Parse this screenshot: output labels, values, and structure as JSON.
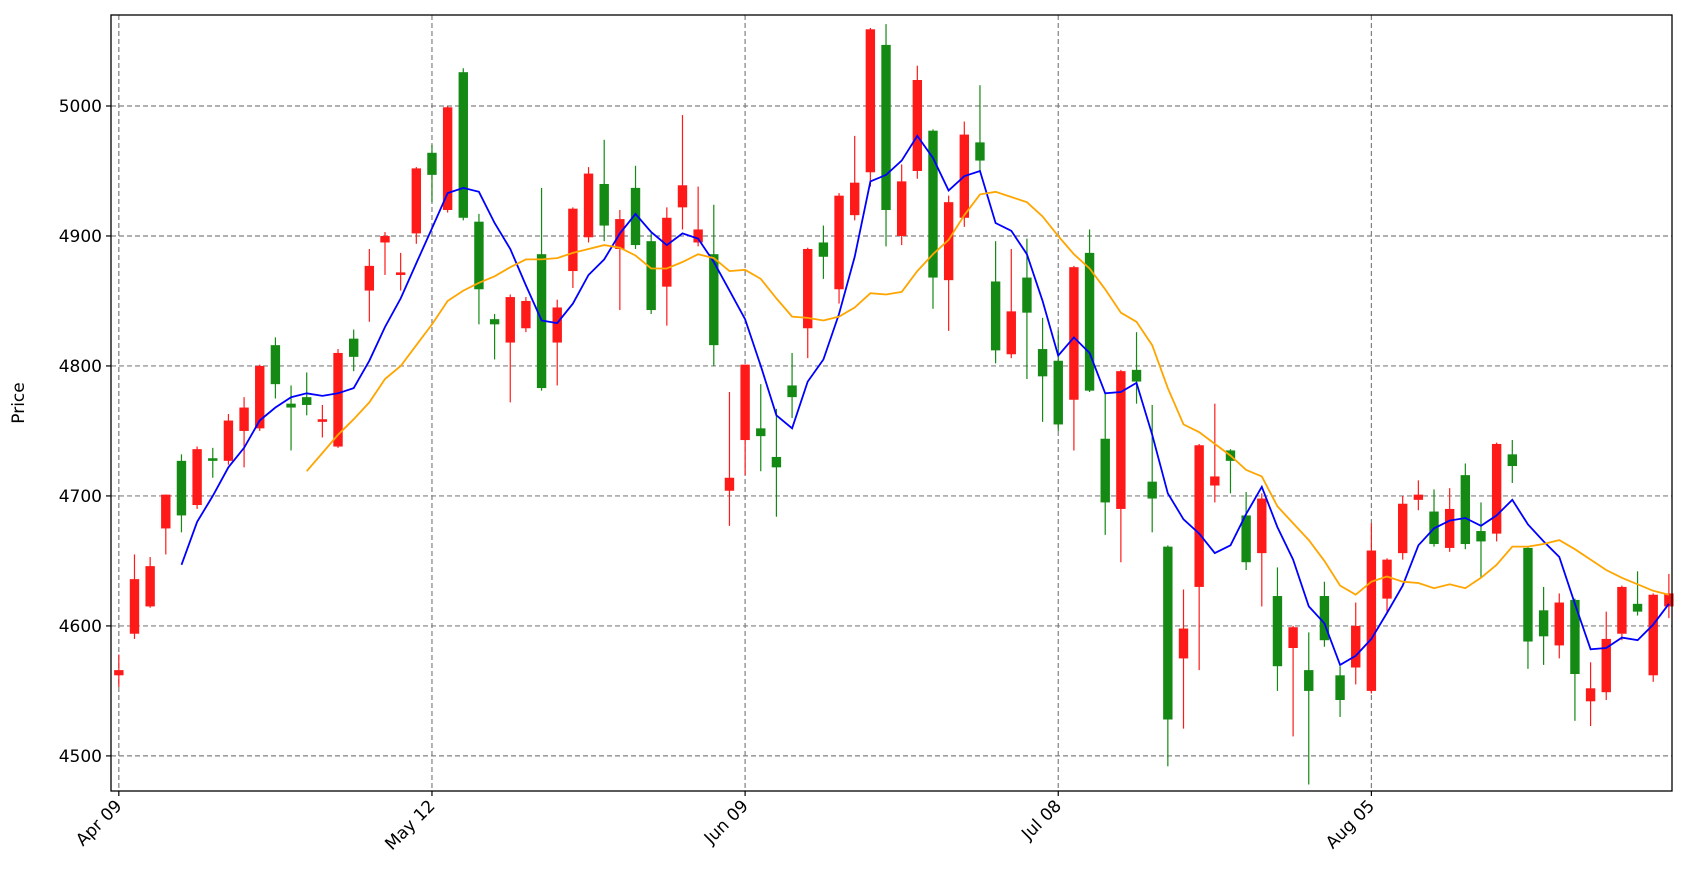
{
  "chart_data": {
    "type": "candlestick",
    "ylabel": "Price",
    "categories": [
      "Apr 09",
      null,
      null,
      null,
      null,
      null,
      null,
      null,
      null,
      null,
      null,
      null,
      null,
      null,
      null,
      null,
      null,
      null,
      null,
      null,
      "May 12",
      null,
      null,
      null,
      null,
      null,
      null,
      null,
      null,
      null,
      null,
      null,
      null,
      null,
      null,
      null,
      null,
      null,
      null,
      null,
      "Jun 09",
      null,
      null,
      null,
      null,
      null,
      null,
      null,
      null,
      null,
      null,
      null,
      null,
      null,
      null,
      null,
      null,
      null,
      null,
      null,
      "Jul 08",
      null,
      null,
      null,
      null,
      null,
      null,
      null,
      null,
      null,
      null,
      null,
      null,
      null,
      null,
      null,
      null,
      null,
      null,
      null,
      "Aug 05",
      null,
      null,
      null,
      null,
      null,
      null,
      null,
      null,
      null,
      null,
      null,
      null,
      null,
      null,
      null,
      null,
      null,
      null,
      null
    ],
    "open": [
      4562,
      4594,
      4615,
      4675,
      4727,
      4693,
      4729,
      4727,
      4750,
      4752,
      4816,
      4771,
      4776,
      4757,
      4738,
      4821,
      4858,
      4895,
      4870,
      4902,
      4964,
      4920,
      5026,
      4911,
      4836,
      4818,
      4829,
      4886,
      4818,
      4873,
      4899,
      4940,
      4890,
      4937,
      4896,
      4861,
      4922,
      4895,
      4886,
      4704,
      4743,
      4752,
      4730,
      4785,
      4829,
      4895,
      4859,
      4916,
      4949,
      5047,
      4900,
      4950,
      4981,
      4866,
      4914,
      4972,
      4865,
      4809,
      4868,
      4813,
      4804,
      4774,
      4887,
      4744,
      4690,
      4797,
      4711,
      4661,
      4575,
      4630,
      4708,
      4735,
      4685,
      4656,
      4623,
      4583,
      4566,
      4623,
      4562,
      4568,
      4550,
      4621,
      4656,
      4697,
      4688,
      4660,
      4716,
      4673,
      4671,
      4732,
      4660,
      4612,
      4585,
      4620,
      4542,
      4549,
      4594,
      4617,
      4562,
      4615
    ],
    "high": [
      4578,
      4655,
      4653,
      4701,
      4732,
      4738,
      4737,
      4763,
      4776,
      4801,
      4822,
      4785,
      4795,
      4770,
      4813,
      4828,
      4890,
      4903,
      4887,
      4953,
      4970,
      5000,
      5029,
      4917,
      4840,
      4855,
      4853,
      4937,
      4851,
      4922,
      4953,
      4974,
      4920,
      4954,
      4902,
      4922,
      4993,
      4938,
      4924,
      4780,
      4801,
      4786,
      4767,
      4810,
      4891,
      4908,
      4933,
      4977,
      5060,
      5063,
      4955,
      5031,
      4982,
      4931,
      4988,
      5016,
      4896,
      4890,
      4898,
      4837,
      4827,
      4877,
      4905,
      4779,
      4797,
      4826,
      4770,
      4662,
      4628,
      4740,
      4771,
      4736,
      4703,
      4702,
      4645,
      4600,
      4595,
      4634,
      4569,
      4618,
      4679,
      4652,
      4700,
      4712,
      4705,
      4706,
      4725,
      4695,
      4741,
      4743,
      4661,
      4630,
      4625,
      4621,
      4572,
      4611,
      4631,
      4642,
      4625,
      4640
    ],
    "low": [
      4553,
      4590,
      4614,
      4655,
      4672,
      4690,
      4714,
      4724,
      4722,
      4750,
      4775,
      4735,
      4762,
      4745,
      4737,
      4796,
      4834,
      4870,
      4858,
      4894,
      4926,
      4918,
      4912,
      4832,
      4805,
      4772,
      4826,
      4781,
      4785,
      4860,
      4895,
      4896,
      4843,
      4890,
      4840,
      4831,
      4905,
      4892,
      4800,
      4677,
      4716,
      4719,
      4684,
      4760,
      4806,
      4867,
      4848,
      4912,
      4938,
      4892,
      4893,
      4944,
      4844,
      4827,
      4907,
      4949,
      4802,
      4806,
      4790,
      4757,
      4750,
      4735,
      4780,
      4670,
      4649,
      4771,
      4672,
      4492,
      4521,
      4566,
      4695,
      4702,
      4643,
      4615,
      4550,
      4515,
      4478,
      4584,
      4530,
      4555,
      4548,
      4610,
      4651,
      4689,
      4661,
      4657,
      4659,
      4637,
      4665,
      4710,
      4567,
      4570,
      4575,
      4527,
      4523,
      4543,
      4589,
      4608,
      4557,
      4606
    ],
    "close": [
      4566,
      4636,
      4646,
      4701,
      4685,
      4736,
      4727,
      4758,
      4768,
      4800,
      4786,
      4768,
      4770,
      4759,
      4810,
      4807,
      4877,
      4900,
      4872,
      4952,
      4947,
      4999,
      4914,
      4859,
      4832,
      4853,
      4850,
      4783,
      4845,
      4921,
      4948,
      4908,
      4913,
      4893,
      4843,
      4914,
      4939,
      4905,
      4816,
      4714,
      4801,
      4746,
      4722,
      4776,
      4890,
      4884,
      4931,
      4941,
      5059,
      4920,
      4942,
      5020,
      4868,
      4926,
      4978,
      4958,
      4812,
      4842,
      4841,
      4792,
      4755,
      4876,
      4781,
      4695,
      4796,
      4788,
      4698,
      4528,
      4598,
      4739,
      4715,
      4727,
      4649,
      4698,
      4569,
      4599,
      4550,
      4589,
      4543,
      4600,
      4658,
      4651,
      4694,
      4701,
      4663,
      4690,
      4663,
      4665,
      4740,
      4723,
      4588,
      4592,
      4618,
      4563,
      4552,
      4590,
      4630,
      4611,
      4624,
      4625
    ],
    "up_color": "#ff1a1a",
    "down_color": "#148a14",
    "series": [
      {
        "color": "#0000ff",
        "values": [
          null,
          null,
          null,
          null,
          4647,
          4680,
          4700,
          4722,
          4737,
          4758,
          4768,
          4776,
          4779,
          4777,
          4779,
          4783,
          4804,
          4830,
          4852,
          4879,
          4906,
          4933,
          4937,
          4934,
          4910,
          4890,
          4862,
          4835,
          4833,
          4848,
          4870,
          4882,
          4902,
          4917,
          4903,
          4893,
          4902,
          4898,
          4880,
          4858,
          4836,
          4800,
          4762,
          4752,
          4788,
          4805,
          4840,
          4884,
          4942,
          4947,
          4958,
          4977,
          4960,
          4935,
          4946,
          4950,
          4910,
          4904,
          4886,
          4850,
          4808,
          4822,
          4810,
          4779,
          4780,
          4787,
          4747,
          4702,
          4682,
          4671,
          4656,
          4662,
          4686,
          4707,
          4676,
          4651,
          4615,
          4602,
          4570,
          4577,
          4590,
          4610,
          4631,
          4662,
          4675,
          4681,
          4683,
          4677,
          4685,
          4697,
          4678,
          4665,
          4653,
          4617,
          4582,
          4583,
          4591,
          4589,
          4601,
          4617
        ]
      },
      {
        "color": "#ffa500",
        "values": [
          null,
          null,
          null,
          null,
          null,
          null,
          null,
          null,
          null,
          null,
          null,
          null,
          4719,
          4733,
          4747,
          4759,
          4772,
          4790,
          4800,
          4816,
          4832,
          4850,
          4858,
          4864,
          4869,
          4876,
          4882,
          4882,
          4883,
          4887,
          4890,
          4893,
          4891,
          4885,
          4875,
          4875,
          4880,
          4886,
          4883,
          4873,
          4874,
          4867,
          4852,
          4838,
          4837,
          4835,
          4838,
          4845,
          4856,
          4855,
          4857,
          4873,
          4886,
          4897,
          4916,
          4932,
          4934,
          4930,
          4926,
          4915,
          4900,
          4886,
          4875,
          4859,
          4841,
          4834,
          4816,
          4783,
          4755,
          4749,
          4740,
          4731,
          4720,
          4715,
          4692,
          4679,
          4666,
          4650,
          4631,
          4624,
          4634,
          4638,
          4634,
          4633,
          4629,
          4632,
          4629,
          4637,
          4647,
          4661,
          4661,
          4663,
          4666,
          4659,
          4651,
          4643,
          4637,
          4632,
          4627,
          4624
        ]
      }
    ],
    "ylim": [
      4473,
      5070
    ],
    "yticks": [
      4500,
      4600,
      4700,
      4800,
      4900,
      5000
    ],
    "grid": true
  }
}
